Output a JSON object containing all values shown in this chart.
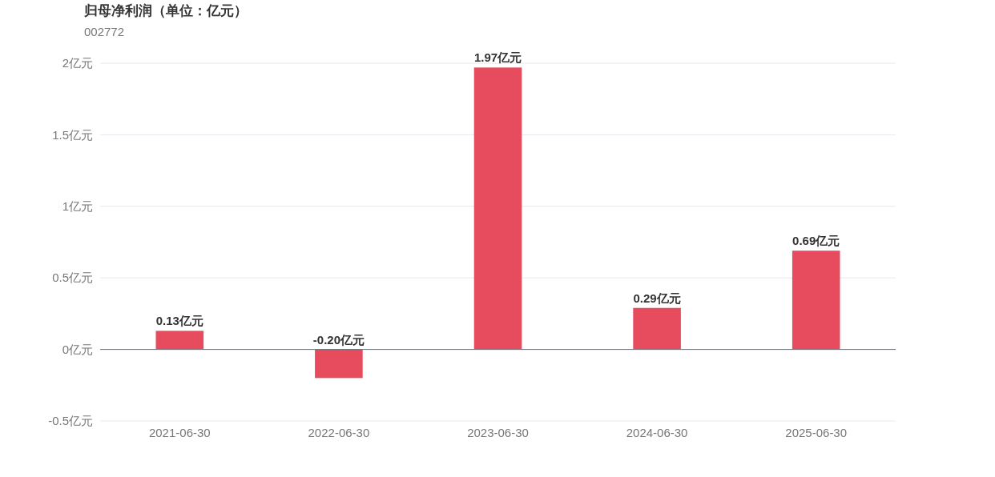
{
  "chart_data": {
    "type": "bar",
    "title": "归母净利润（单位：亿元）",
    "subtitle": "002772",
    "categories": [
      "2021-06-30",
      "2022-06-30",
      "2023-06-30",
      "2024-06-30",
      "2025-06-30"
    ],
    "values": [
      0.13,
      -0.2,
      1.97,
      0.29,
      0.69
    ],
    "color": "#e64c5e",
    "value_labels": [
      "0.13亿元",
      "-0.20亿元",
      "1.97亿元",
      "0.29亿元",
      "0.69亿元"
    ],
    "ylim": [
      -0.5,
      2
    ],
    "yticks": [
      {
        "value": -0.5,
        "label": "-0.5亿元"
      },
      {
        "value": 0,
        "label": "0亿元"
      },
      {
        "value": 0.5,
        "label": "0.5亿元"
      },
      {
        "value": 1,
        "label": "1亿元"
      },
      {
        "value": 1.5,
        "label": "1.5亿元"
      },
      {
        "value": 2,
        "label": "2亿元"
      }
    ],
    "grid": "y"
  }
}
